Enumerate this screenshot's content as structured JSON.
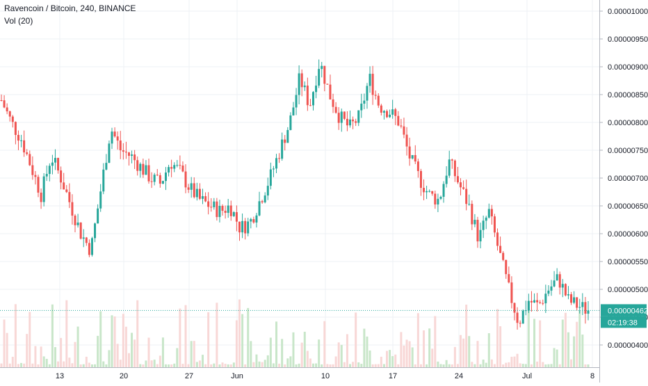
{
  "header": {
    "symbol_line": "Ravencoin / Bitcoin, 240, BINANCE",
    "volume_label": "Vol (20)"
  },
  "price_axis": {
    "labels": [
      "0.00001000",
      "0.00000950",
      "0.00000900",
      "0.00000850",
      "0.00000800",
      "0.00000750",
      "0.00000700",
      "0.00000650",
      "0.00000600",
      "0.00000550",
      "0.00000500",
      "0.00000450",
      "0.00000400"
    ]
  },
  "time_axis": {
    "labels": [
      "13",
      "20",
      "27",
      "Jun",
      "10",
      "17",
      "24",
      "Jul",
      "8"
    ]
  },
  "last_price": {
    "value": "0.00000462",
    "countdown": "02:19:38"
  },
  "colors": {
    "up": "#26a69a",
    "down": "#ef5350",
    "up_volume": "#c8e6c9",
    "down_volume": "#f8d7d6",
    "grid": "#eef1f4",
    "last_price": "#26a69a",
    "axis_line": "#b2b5be"
  },
  "chart_data": {
    "type": "candlestick",
    "title": "Ravencoin / Bitcoin, 240, BINANCE",
    "ylabel": "",
    "ylim": [
      3.7e-06,
      1.01e-05
    ],
    "x_ticks": [
      "13",
      "20",
      "27",
      "Jun",
      "10",
      "17",
      "24",
      "Jul",
      "8"
    ],
    "close_series_approx": [
      8.4e-06,
      8e-06,
      7.7e-06,
      7.2e-06,
      6.7e-06,
      7.4e-06,
      7e-06,
      6.5e-06,
      6e-06,
      5.7e-06,
      6.8e-06,
      7.9e-06,
      7.5e-06,
      7.4e-06,
      7.2e-06,
      7e-06,
      6.9e-06,
      7.3e-06,
      7.1e-06,
      6.8e-06,
      6.6e-06,
      6.5e-06,
      6.4e-06,
      6.5e-06,
      6.1e-06,
      6.2e-06,
      6.6e-06,
      7e-06,
      7.5e-06,
      8e-06,
      8.8e-06,
      8.3e-06,
      9.1e-06,
      8.5e-06,
      8.1e-06,
      7.9e-06,
      8.1e-06,
      8.8e-06,
      8.3e-06,
      8.2e-06,
      8e-06,
      7.4e-06,
      7e-06,
      6.7e-06,
      6.6e-06,
      7.3e-06,
      6.9e-06,
      6.5e-06,
      5.9e-06,
      6.4e-06,
      5.7e-06,
      5e-06,
      4.4e-06,
      4.8e-06,
      4.7e-06,
      5e-06,
      5.2e-06,
      4.8e-06,
      4.7e-06,
      4.62e-06
    ],
    "last_value": 4.62e-06
  }
}
